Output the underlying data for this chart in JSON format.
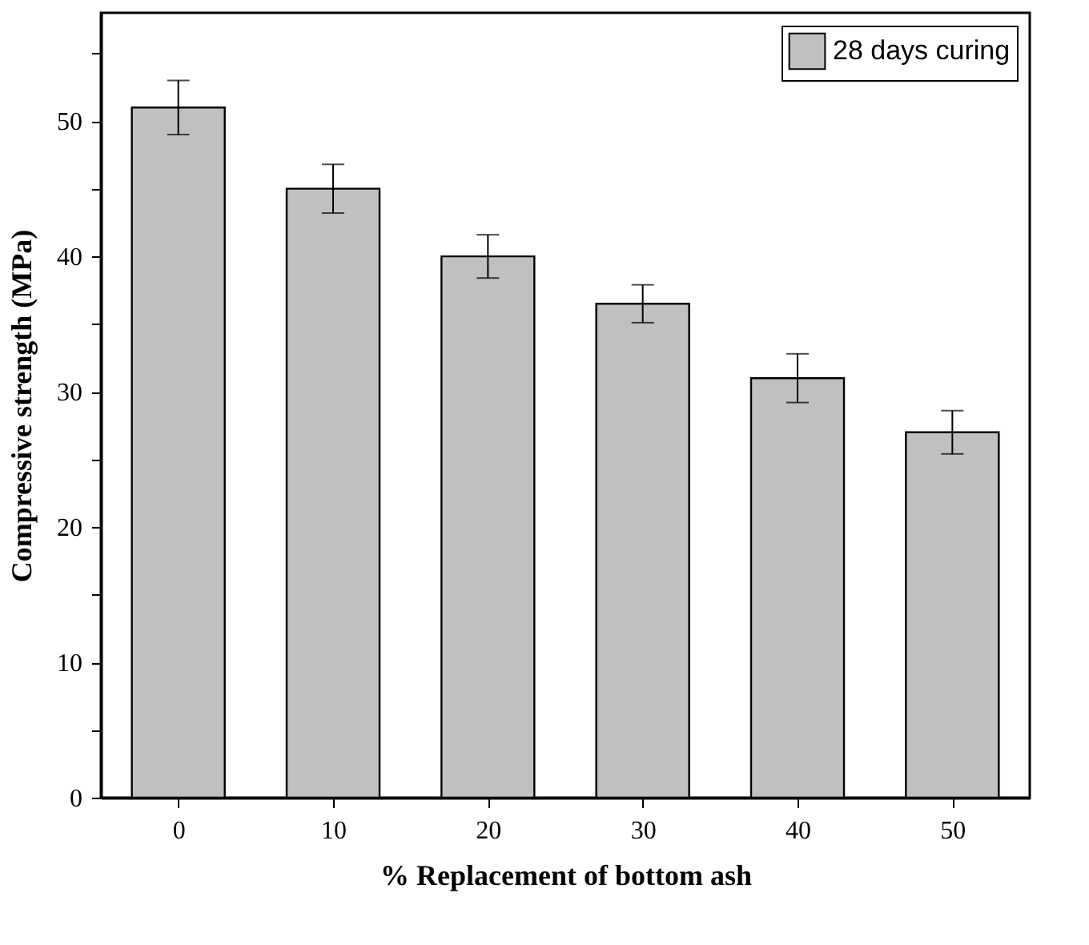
{
  "chart_data": {
    "type": "bar",
    "xlabel": "% Replacement of bottom ash",
    "ylabel": "Compressive strength (MPa)",
    "x": [
      0,
      10,
      20,
      30,
      40,
      50
    ],
    "series": [
      {
        "name": "28 days curing",
        "color": "#c0c0c0",
        "values": [
          51,
          45,
          40,
          36.5,
          31,
          27
        ],
        "errors": [
          2,
          1.8,
          1.6,
          1.4,
          1.8,
          1.6
        ]
      }
    ],
    "xlim": [
      -5,
      55
    ],
    "xticks": [
      0,
      10,
      20,
      30,
      40,
      50
    ],
    "ylim": [
      0,
      58
    ],
    "yticks": [
      0,
      {
        "value": 5,
        "label": null
      },
      10,
      {
        "value": 15,
        "label": null
      },
      20,
      {
        "value": 25,
        "label": null
      },
      30,
      {
        "value": 35,
        "label": null
      },
      40,
      {
        "value": 45,
        "label": null
      },
      50,
      {
        "value": 55,
        "label": null
      }
    ],
    "grid": false,
    "legend": "top right"
  }
}
